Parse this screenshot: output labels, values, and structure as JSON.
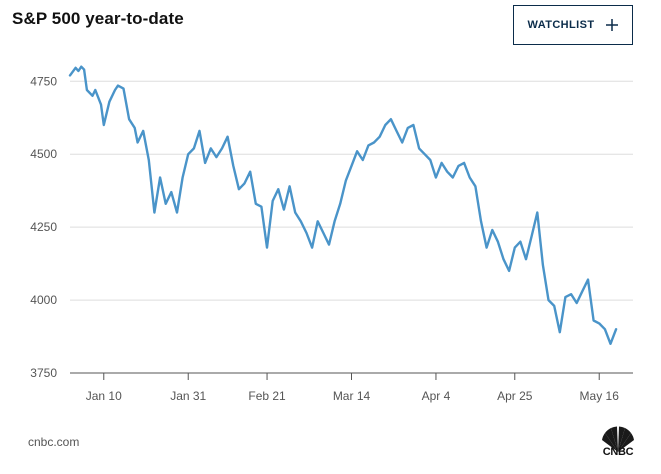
{
  "header": {
    "title": "S&P 500 year-to-date",
    "watchlist_label": "WATCHLIST"
  },
  "footer": {
    "source": "cnbc.com",
    "logo_text": "CNBC"
  },
  "colors": {
    "line": "#4a94c9",
    "grid": "#dddddd",
    "axis": "#555555",
    "accent": "#0b2c4a"
  },
  "icons": {
    "add": "plus-icon",
    "brand": "cnbc-peacock-icon"
  },
  "chart_data": {
    "type": "line",
    "title": "S&P 500 year-to-date",
    "xlabel": "",
    "ylabel": "",
    "grid": true,
    "ylim": [
      3750,
      4840
    ],
    "xlim": [
      0,
      100
    ],
    "yticks": [
      3750,
      4000,
      4250,
      4500,
      4750
    ],
    "xticks": [
      {
        "label": "Jan 10",
        "x": 6
      },
      {
        "label": "Jan 31",
        "x": 21
      },
      {
        "label": "Feb 21",
        "x": 35
      },
      {
        "label": "Mar 14",
        "x": 50
      },
      {
        "label": "Apr 4",
        "x": 65
      },
      {
        "label": "Apr 25",
        "x": 79
      },
      {
        "label": "May 16",
        "x": 94
      }
    ],
    "series": [
      {
        "name": "S&P 500",
        "points": [
          [
            0,
            4770
          ],
          [
            1,
            4796
          ],
          [
            1.5,
            4785
          ],
          [
            2,
            4800
          ],
          [
            2.5,
            4790
          ],
          [
            3,
            4720
          ],
          [
            4,
            4700
          ],
          [
            4.5,
            4720
          ],
          [
            5.5,
            4670
          ],
          [
            6,
            4600
          ],
          [
            7,
            4680
          ],
          [
            8,
            4720
          ],
          [
            8.5,
            4735
          ],
          [
            9.5,
            4725
          ],
          [
            10.5,
            4620
          ],
          [
            11.5,
            4590
          ],
          [
            12,
            4540
          ],
          [
            13,
            4580
          ],
          [
            14,
            4480
          ],
          [
            15,
            4300
          ],
          [
            16,
            4420
          ],
          [
            17,
            4330
          ],
          [
            18,
            4370
          ],
          [
            19,
            4300
          ],
          [
            20,
            4420
          ],
          [
            21,
            4500
          ],
          [
            22,
            4520
          ],
          [
            23,
            4580
          ],
          [
            24,
            4470
          ],
          [
            25,
            4520
          ],
          [
            26,
            4490
          ],
          [
            27,
            4520
          ],
          [
            28,
            4560
          ],
          [
            29,
            4460
          ],
          [
            30,
            4380
          ],
          [
            31,
            4400
          ],
          [
            32,
            4440
          ],
          [
            33,
            4330
          ],
          [
            34,
            4320
          ],
          [
            35,
            4180
          ],
          [
            36,
            4340
          ],
          [
            37,
            4380
          ],
          [
            38,
            4310
          ],
          [
            39,
            4390
          ],
          [
            40,
            4300
          ],
          [
            41,
            4270
          ],
          [
            42,
            4230
          ],
          [
            43,
            4180
          ],
          [
            44,
            4270
          ],
          [
            45,
            4230
          ],
          [
            46,
            4190
          ],
          [
            47,
            4270
          ],
          [
            48,
            4330
          ],
          [
            49,
            4410
          ],
          [
            50,
            4460
          ],
          [
            51,
            4510
          ],
          [
            52,
            4480
          ],
          [
            53,
            4530
          ],
          [
            54,
            4540
          ],
          [
            55,
            4560
          ],
          [
            56,
            4600
          ],
          [
            57,
            4620
          ],
          [
            58,
            4580
          ],
          [
            59,
            4540
          ],
          [
            60,
            4590
          ],
          [
            61,
            4600
          ],
          [
            62,
            4520
          ],
          [
            63,
            4500
          ],
          [
            64,
            4480
          ],
          [
            65,
            4420
          ],
          [
            66,
            4470
          ],
          [
            67,
            4440
          ],
          [
            68,
            4420
          ],
          [
            69,
            4460
          ],
          [
            70,
            4470
          ],
          [
            71,
            4420
          ],
          [
            72,
            4390
          ],
          [
            73,
            4270
          ],
          [
            74,
            4180
          ],
          [
            75,
            4240
          ],
          [
            76,
            4200
          ],
          [
            77,
            4140
          ],
          [
            78,
            4100
          ],
          [
            79,
            4180
          ],
          [
            80,
            4200
          ],
          [
            81,
            4140
          ],
          [
            82,
            4220
          ],
          [
            83,
            4300
          ],
          [
            84,
            4120
          ],
          [
            85,
            4000
          ],
          [
            86,
            3980
          ],
          [
            87,
            3890
          ],
          [
            88,
            4010
          ],
          [
            89,
            4020
          ],
          [
            90,
            3990
          ],
          [
            91,
            4030
          ],
          [
            92,
            4070
          ],
          [
            93,
            3930
          ],
          [
            94,
            3920
          ],
          [
            95,
            3900
          ],
          [
            96,
            3850
          ],
          [
            97,
            3900
          ]
        ]
      }
    ]
  }
}
